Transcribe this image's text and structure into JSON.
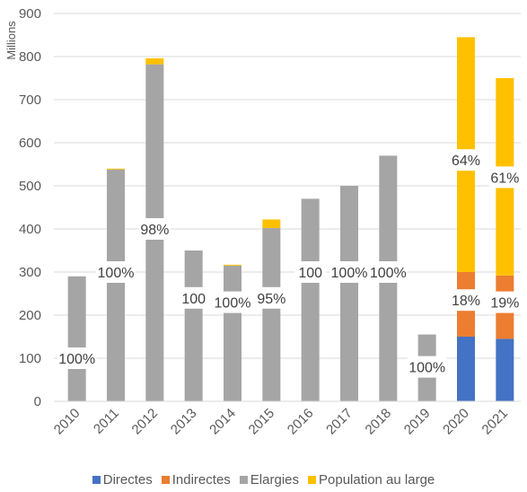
{
  "chart_data": {
    "type": "bar",
    "stacked": true,
    "ylabel": "Millions",
    "ylim": [
      0,
      900
    ],
    "yticks": [
      0,
      100,
      200,
      300,
      400,
      500,
      600,
      700,
      800,
      900
    ],
    "grid": true,
    "legend_position": "bottom",
    "categories": [
      "2010",
      "2011",
      "2012",
      "2013",
      "2014",
      "2015",
      "2016",
      "2017",
      "2018",
      "2019",
      "2020",
      "2021"
    ],
    "series": [
      {
        "name": "Directes",
        "color": "#4472C4",
        "values": [
          0,
          0,
          0,
          0,
          0,
          0,
          0,
          0,
          0,
          0,
          150,
          145
        ]
      },
      {
        "name": "Indirectes",
        "color": "#ED7D31",
        "values": [
          0,
          0,
          0,
          0,
          0,
          0,
          0,
          0,
          0,
          0,
          150,
          147
        ]
      },
      {
        "name": "Elargies",
        "color": "#A5A5A5",
        "values": [
          290,
          538,
          782,
          350,
          315,
          402,
          470,
          500,
          570,
          155,
          0,
          0
        ]
      },
      {
        "name": "Population au large",
        "color": "#FFC000",
        "values": [
          0,
          2,
          14,
          0,
          2,
          20,
          0,
          0,
          0,
          0,
          545,
          458
        ]
      }
    ],
    "annotations": [
      {
        "category": "2010",
        "text": "100%",
        "y": 100
      },
      {
        "category": "2011",
        "text": "100%",
        "y": 300
      },
      {
        "category": "2012",
        "text": "98%",
        "y": 400
      },
      {
        "category": "2013",
        "text": "100",
        "y": 240
      },
      {
        "category": "2014",
        "text": "100%",
        "y": 230
      },
      {
        "category": "2015",
        "text": "95%",
        "y": 240
      },
      {
        "category": "2016",
        "text": "100",
        "y": 300
      },
      {
        "category": "2017",
        "text": "100%",
        "y": 300
      },
      {
        "category": "2018",
        "text": "100%",
        "y": 300
      },
      {
        "category": "2019",
        "text": "100%",
        "y": 80
      },
      {
        "category": "2020",
        "text": "18%",
        "y": 235
      },
      {
        "category": "2020",
        "text": "64%",
        "y": 560
      },
      {
        "category": "2021",
        "text": "19%",
        "y": 230
      },
      {
        "category": "2021",
        "text": "61%",
        "y": 520
      }
    ]
  }
}
